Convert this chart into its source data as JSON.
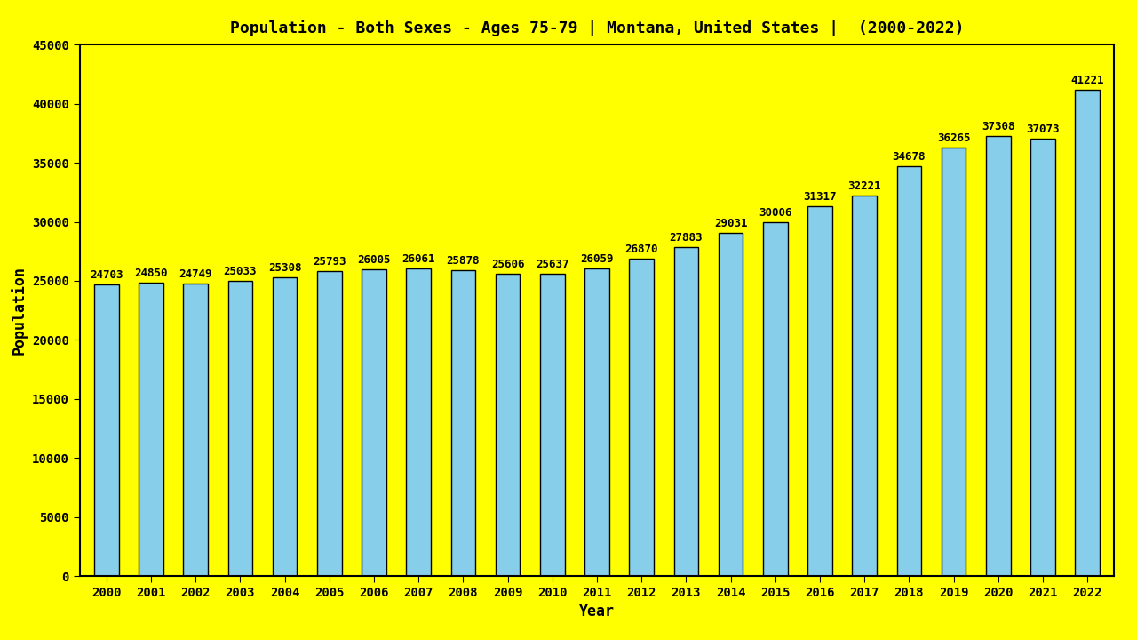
{
  "title": "Population - Both Sexes - Ages 75-79 | Montana, United States |  (2000-2022)",
  "xlabel": "Year",
  "ylabel": "Population",
  "background_color": "#FFFF00",
  "bar_color": "#87CEEB",
  "bar_edge_color": "#000000",
  "years": [
    2000,
    2001,
    2002,
    2003,
    2004,
    2005,
    2006,
    2007,
    2008,
    2009,
    2010,
    2011,
    2012,
    2013,
    2014,
    2015,
    2016,
    2017,
    2018,
    2019,
    2020,
    2021,
    2022
  ],
  "values": [
    24703,
    24850,
    24749,
    25033,
    25308,
    25793,
    26005,
    26061,
    25878,
    25606,
    25637,
    26059,
    26870,
    27883,
    29031,
    30006,
    31317,
    32221,
    34678,
    36265,
    37308,
    37073,
    41221
  ],
  "ylim": [
    0,
    45000
  ],
  "yticks": [
    0,
    5000,
    10000,
    15000,
    20000,
    25000,
    30000,
    35000,
    40000,
    45000
  ],
  "title_fontsize": 13,
  "axis_label_fontsize": 12,
  "tick_fontsize": 10,
  "value_label_fontsize": 9,
  "bar_width": 0.55
}
